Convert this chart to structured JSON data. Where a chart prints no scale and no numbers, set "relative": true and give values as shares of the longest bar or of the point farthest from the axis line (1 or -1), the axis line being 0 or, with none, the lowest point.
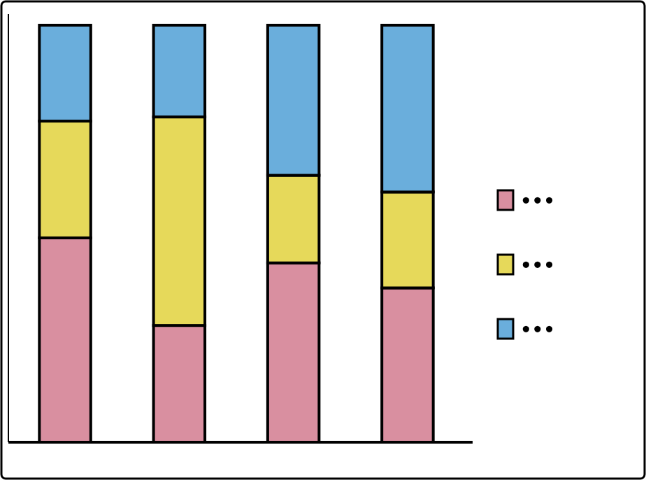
{
  "chart_data": {
    "type": "bar",
    "stacked": true,
    "relative": true,
    "categories": [
      null,
      null,
      null,
      null
    ],
    "series": [
      {
        "name": "•••",
        "color": "#d98fa0",
        "values": [
          0.49,
          0.28,
          0.43,
          0.37
        ]
      },
      {
        "name": "•••",
        "color": "#e6d95a",
        "values": [
          0.28,
          0.5,
          0.21,
          0.23
        ]
      },
      {
        "name": "•••",
        "color": "#6aaedc",
        "values": [
          0.23,
          0.22,
          0.36,
          0.4
        ]
      }
    ],
    "legend": "right"
  }
}
